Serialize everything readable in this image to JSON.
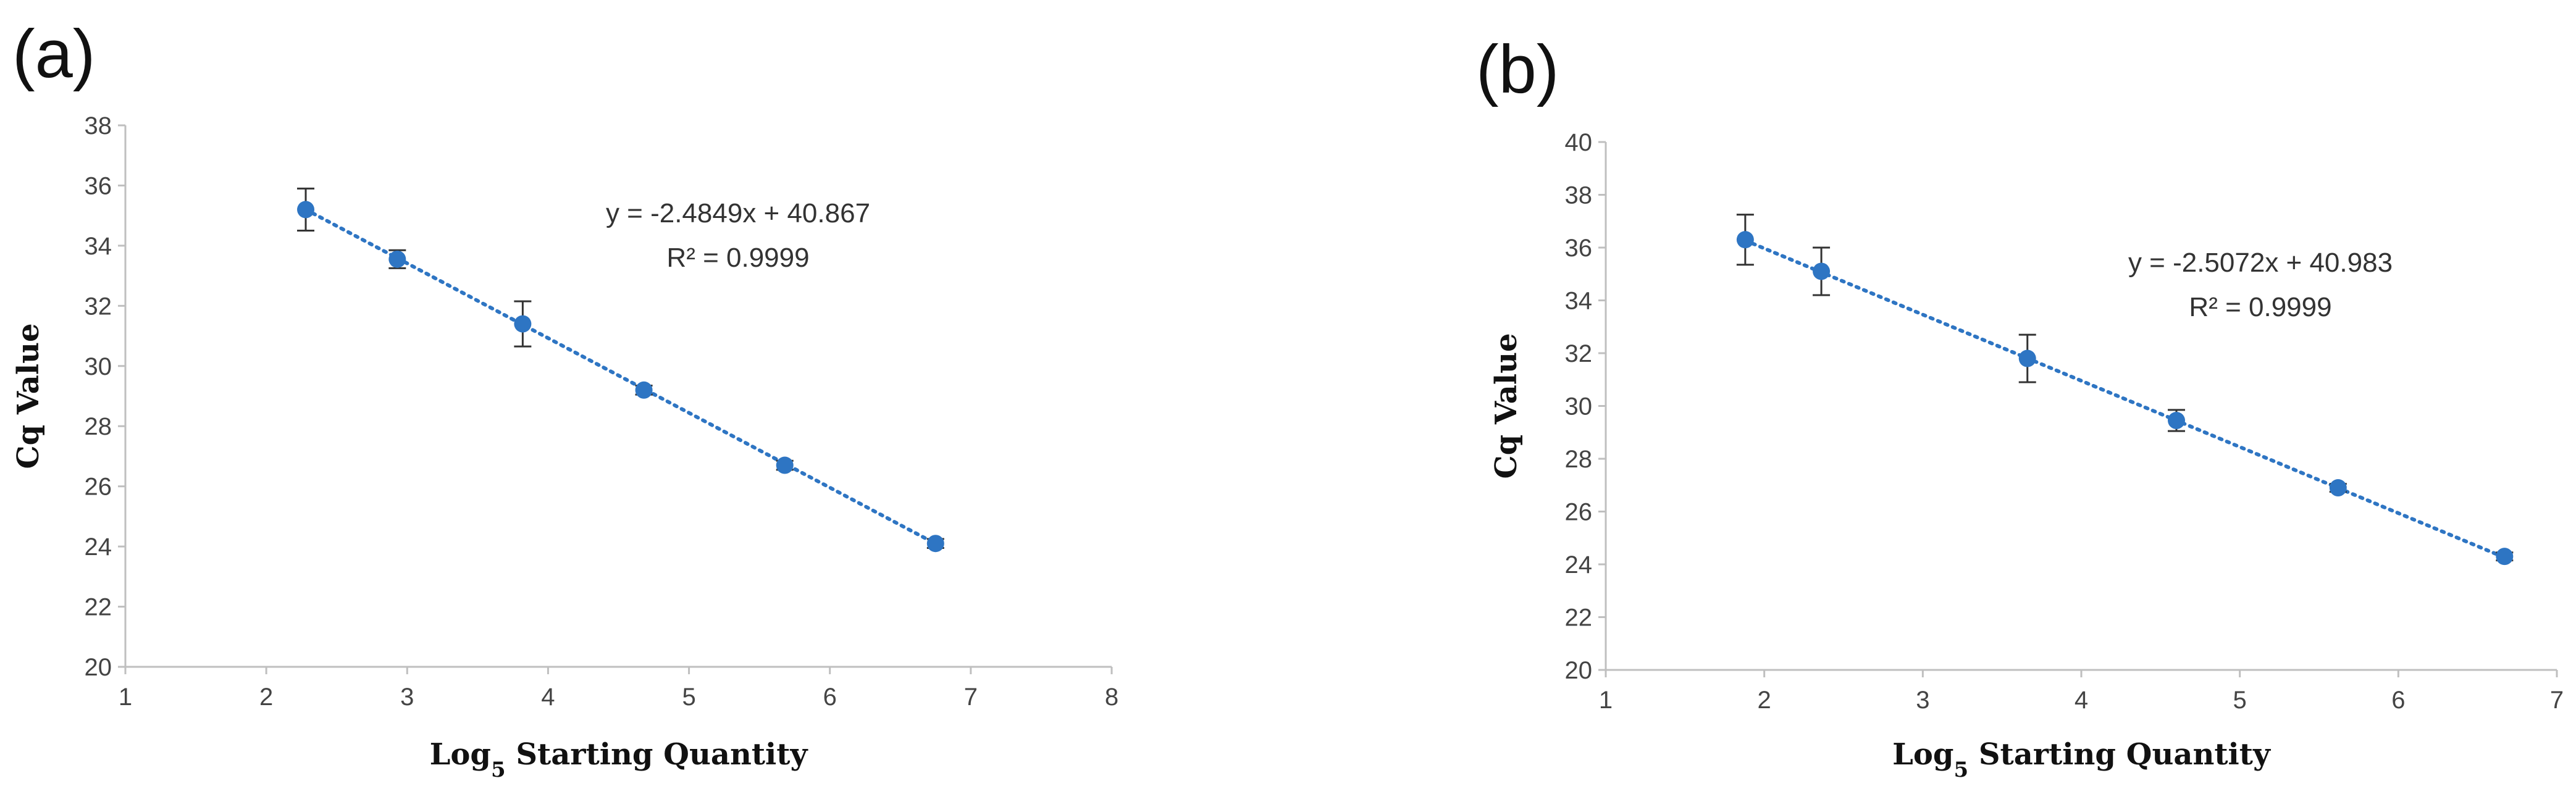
{
  "chart_data": [
    {
      "type": "scatter",
      "panel_label": "(a)",
      "xlabel": "Log5 Starting Quantity",
      "ylabel": "Cq Value",
      "xlim": [
        1,
        8
      ],
      "ylim": [
        20,
        38
      ],
      "x_ticks": [
        "1",
        "2",
        "3",
        "4",
        "5",
        "6",
        "7",
        "8"
      ],
      "y_ticks": [
        "20",
        "22",
        "24",
        "26",
        "28",
        "30",
        "32",
        "34",
        "36",
        "38"
      ],
      "grid": false,
      "points": [
        {
          "x": 2.28,
          "y": 35.2,
          "err": 0.7
        },
        {
          "x": 2.93,
          "y": 33.55,
          "err": 0.3
        },
        {
          "x": 3.82,
          "y": 31.4,
          "err": 0.75
        },
        {
          "x": 4.68,
          "y": 29.2,
          "err": 0.15
        },
        {
          "x": 5.68,
          "y": 26.7,
          "err": 0.15
        },
        {
          "x": 6.75,
          "y": 24.1,
          "err": 0.15
        }
      ],
      "trendline": {
        "slope": -2.4849,
        "intercept": 40.867,
        "x_range": [
          2.28,
          6.75
        ]
      },
      "equation": "y = -2.4849x + 40.867",
      "r_squared": "R² = 0.9999",
      "color": "#2e75c3"
    },
    {
      "type": "scatter",
      "panel_label": "(b)",
      "xlabel": "Log5 Starting Quantity",
      "ylabel": "Cq Value",
      "xlim": [
        1,
        7
      ],
      "ylim": [
        20,
        40
      ],
      "x_ticks": [
        "1",
        "2",
        "3",
        "4",
        "5",
        "6",
        "7"
      ],
      "y_ticks": [
        "20",
        "22",
        "24",
        "26",
        "28",
        "30",
        "32",
        "34",
        "36",
        "38",
        "40"
      ],
      "grid": false,
      "points": [
        {
          "x": 1.88,
          "y": 36.3,
          "err": 0.95
        },
        {
          "x": 2.36,
          "y": 35.1,
          "err": 0.9
        },
        {
          "x": 3.66,
          "y": 31.8,
          "err": 0.9
        },
        {
          "x": 4.6,
          "y": 29.45,
          "err": 0.4
        },
        {
          "x": 5.62,
          "y": 26.9,
          "err": 0.15
        },
        {
          "x": 6.67,
          "y": 24.3,
          "err": 0.15
        }
      ],
      "trendline": {
        "slope": -2.5072,
        "intercept": 40.983,
        "x_range": [
          1.88,
          6.67
        ]
      },
      "equation": "y = -2.5072x + 40.983",
      "r_squared": "R² = 0.9999",
      "color": "#2e75c3"
    }
  ]
}
